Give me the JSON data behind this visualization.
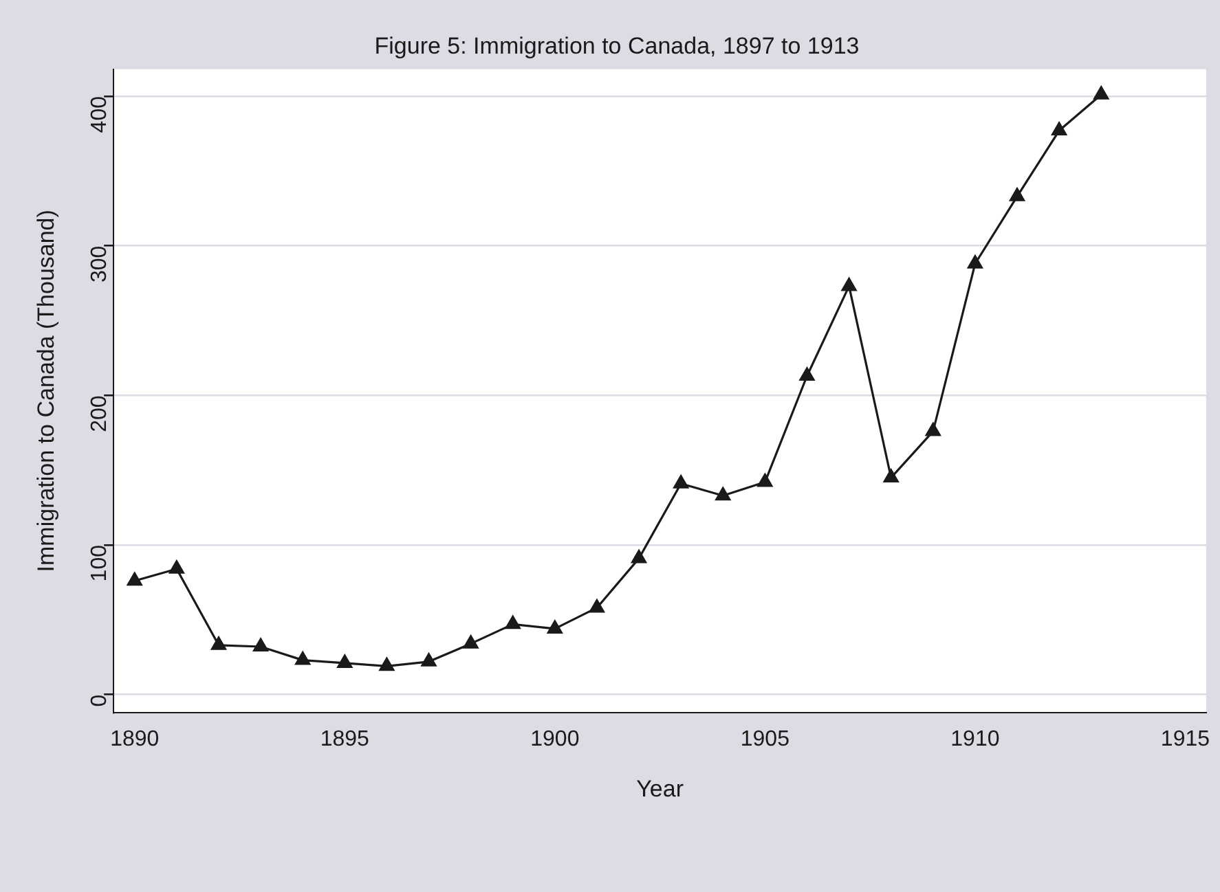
{
  "chart_data": {
    "type": "line",
    "title": "Figure 5: Immigration to Canada, 1897 to 1913",
    "xlabel": "Year",
    "ylabel": "Immigration to Canada (Thousand)",
    "x": [
      1890,
      1891,
      1892,
      1893,
      1894,
      1895,
      1896,
      1897,
      1898,
      1899,
      1900,
      1901,
      1902,
      1903,
      1904,
      1905,
      1906,
      1907,
      1908,
      1909,
      1910,
      1911,
      1912,
      1913
    ],
    "series": [
      {
        "color": "#1a1a1a",
        "values": [
          76,
          84,
          33,
          32,
          23,
          21,
          19,
          22,
          34,
          47,
          44,
          58,
          91,
          141,
          133,
          142,
          213,
          273,
          145,
          176,
          288,
          333,
          377,
          401
        ]
      }
    ],
    "xlim": [
      1889.5,
      1915.5
    ],
    "xticks": [
      1890,
      1895,
      1900,
      1905,
      1910,
      1915
    ],
    "ylim": [
      -12,
      418
    ],
    "yticks": [
      0,
      100,
      200,
      300,
      400
    ],
    "grid": "y",
    "legend": false,
    "marker": "triangle",
    "line_style": "solid"
  }
}
